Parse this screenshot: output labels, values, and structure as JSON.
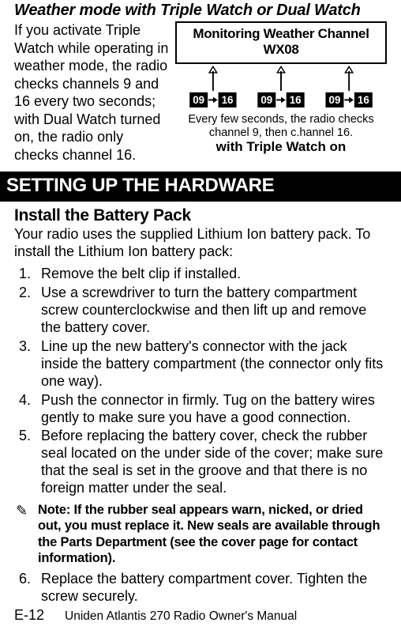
{
  "section_title": "Weather mode with Triple Watch or Dual Watch",
  "intro_left": "If you activate Triple Watch while operating in weather mode, the radio checks channels 9 and 16 every two seconds; with Dual Watch turned on, the radio only checks channel 16.",
  "figure": {
    "monitor_title": "Monitoring Weather Channel WX08",
    "pairs": [
      {
        "a": "09",
        "b": "16"
      },
      {
        "a": "09",
        "b": "16"
      },
      {
        "a": "09",
        "b": "16"
      }
    ],
    "colors": {
      "box_bg": "#000000",
      "box_fg": "#ffffff",
      "arrow": "#000000",
      "line": "#000000"
    },
    "caption1": "Every few seconds, the radio checks channel 9, then c.hannel 16.",
    "caption2": "with Triple Watch on"
  },
  "bar_heading": "SETTING UP THE HARDWARE",
  "subheading": "Install the Battery Pack",
  "sub_intro": "Your radio uses the supplied Lithium Ion battery pack. To install the Lithium Ion battery pack:",
  "steps": [
    "Remove the belt clip if installed.",
    "Use a screwdriver to turn the battery compartment screw counterclockwise and then lift up and remove the battery cover.",
    "Line up the new battery's connector with the jack inside the battery compartment (the connector only fits one way).",
    "Push the connector in firmly. Tug on the battery wires gently to make sure you have a good connection.",
    "Before replacing the battery cover, check the rubber seal located on the under side of the cover; make sure that the seal is set in the groove and that there is no foreign matter under the seal."
  ],
  "note_icon": "✎",
  "note": "Note: If the rubber seal appears warn, nicked, or dried out, you must replace it. New seals are available through the Parts Department (see the cover page for contact information).",
  "steps2": [
    "Replace the battery compartment cover. Tighten the screw securely."
  ],
  "footer": {
    "page": "E-12",
    "title": "Uniden Atlantis 270 Radio Owner's Manual"
  }
}
